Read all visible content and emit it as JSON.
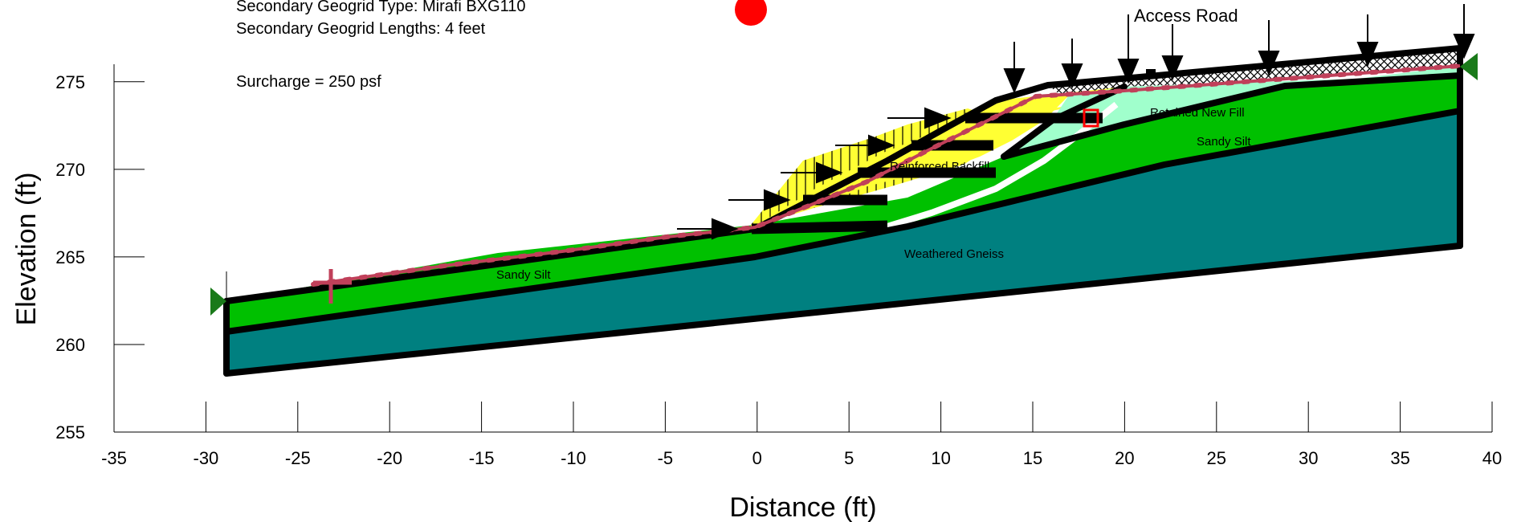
{
  "axes": {
    "xlabel": "Distance (ft)",
    "ylabel": "Elevation (ft)",
    "x_ticks": [
      "-35",
      "-30",
      "-25",
      "-20",
      "-15",
      "-10",
      "-5",
      "0",
      "5",
      "10",
      "15",
      "20",
      "25",
      "30",
      "35",
      "40"
    ],
    "y_ticks": [
      "255",
      "260",
      "265",
      "270",
      "275"
    ]
  },
  "annotations": {
    "geogrid_type": "Secondary Geogrid Type:  Mirafi BXG110",
    "geogrid_lengths": "Secondary Geogrid Lengths:  4 feet",
    "surcharge": "Surcharge = 250 psf",
    "access_road": "Access Road"
  },
  "materials": {
    "retained_new_fill": "Retained New Fill",
    "sandy_silt_upper": "Sandy Silt",
    "reinforced_backfill": "Reinforced Backfill",
    "sandy_silt_lower": "Sandy Silt",
    "weathered_gneiss": "Weathered Gneiss"
  },
  "colors": {
    "gneiss": "#008080",
    "sandy_silt": "#00c000",
    "retained_fill": "#a0ffcc",
    "reinforced_backfill": "#ffff33",
    "slip_surface": "#c0405a",
    "point_marker": "#ff0000",
    "boundary_flag": "#1a7a1a"
  },
  "geometry_data_ft": {
    "x_range": [
      -35,
      40
    ],
    "y_range": [
      255,
      277
    ],
    "ground_surface": [
      [
        -28.7,
        262.0
      ],
      [
        0,
        266.0
      ],
      [
        13.5,
        272.8
      ],
      [
        38.5,
        275.0
      ]
    ],
    "gneiss_top": [
      [
        -28.7,
        260.5
      ],
      [
        0,
        264.5
      ],
      [
        8,
        266
      ],
      [
        14,
        267.6
      ],
      [
        38.5,
        272.5
      ]
    ],
    "gneiss_bottom": [
      [
        -28.7,
        258.0
      ],
      [
        38.5,
        265.0
      ]
    ]
  }
}
